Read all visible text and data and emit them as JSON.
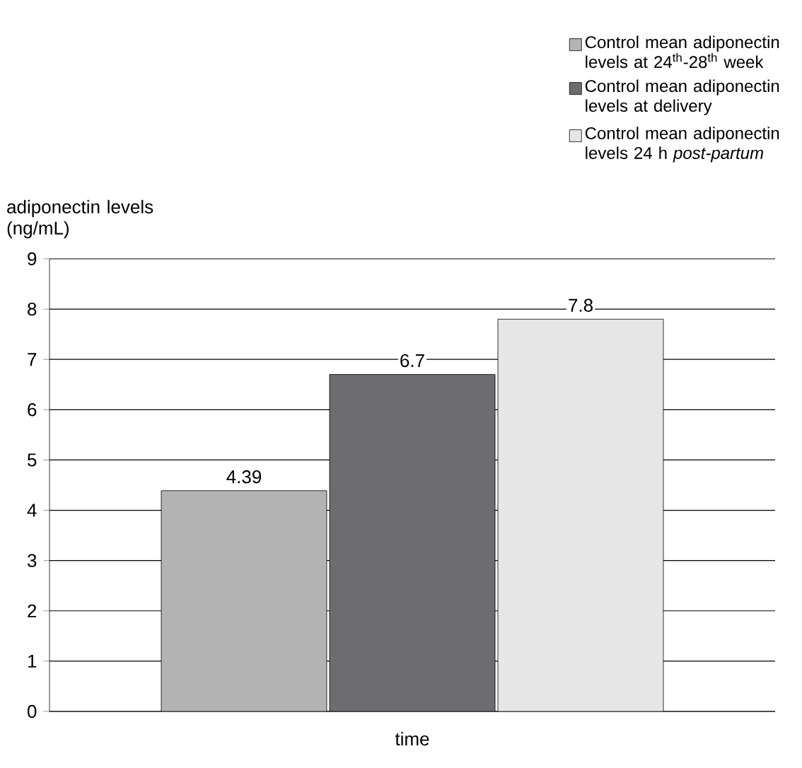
{
  "chart_data": {
    "type": "bar",
    "xlabel": "time",
    "ylabel": "adiponectin levels (ng/mL)",
    "categories": [
      null
    ],
    "series": [
      {
        "name": "Control mean adiponectin levels at 24$^{th}$-28$^{th}$ week",
        "color": "#b3b3b3",
        "values": [
          4.39
        ]
      },
      {
        "name": "Control mean adiponectin levels at delivery",
        "color": "#6d6d70",
        "values": [
          6.7
        ]
      },
      {
        "name": "Control mean adiponectin levels 24 h *post-partum*",
        "color": "#e6e6e6",
        "values": [
          7.8
        ]
      }
    ],
    "ylim": [
      0,
      9
    ],
    "yticks": [
      0,
      1,
      2,
      3,
      4,
      5,
      6,
      7,
      8,
      9
    ],
    "grid": "y",
    "legend": "top right",
    "data_labels": true
  }
}
